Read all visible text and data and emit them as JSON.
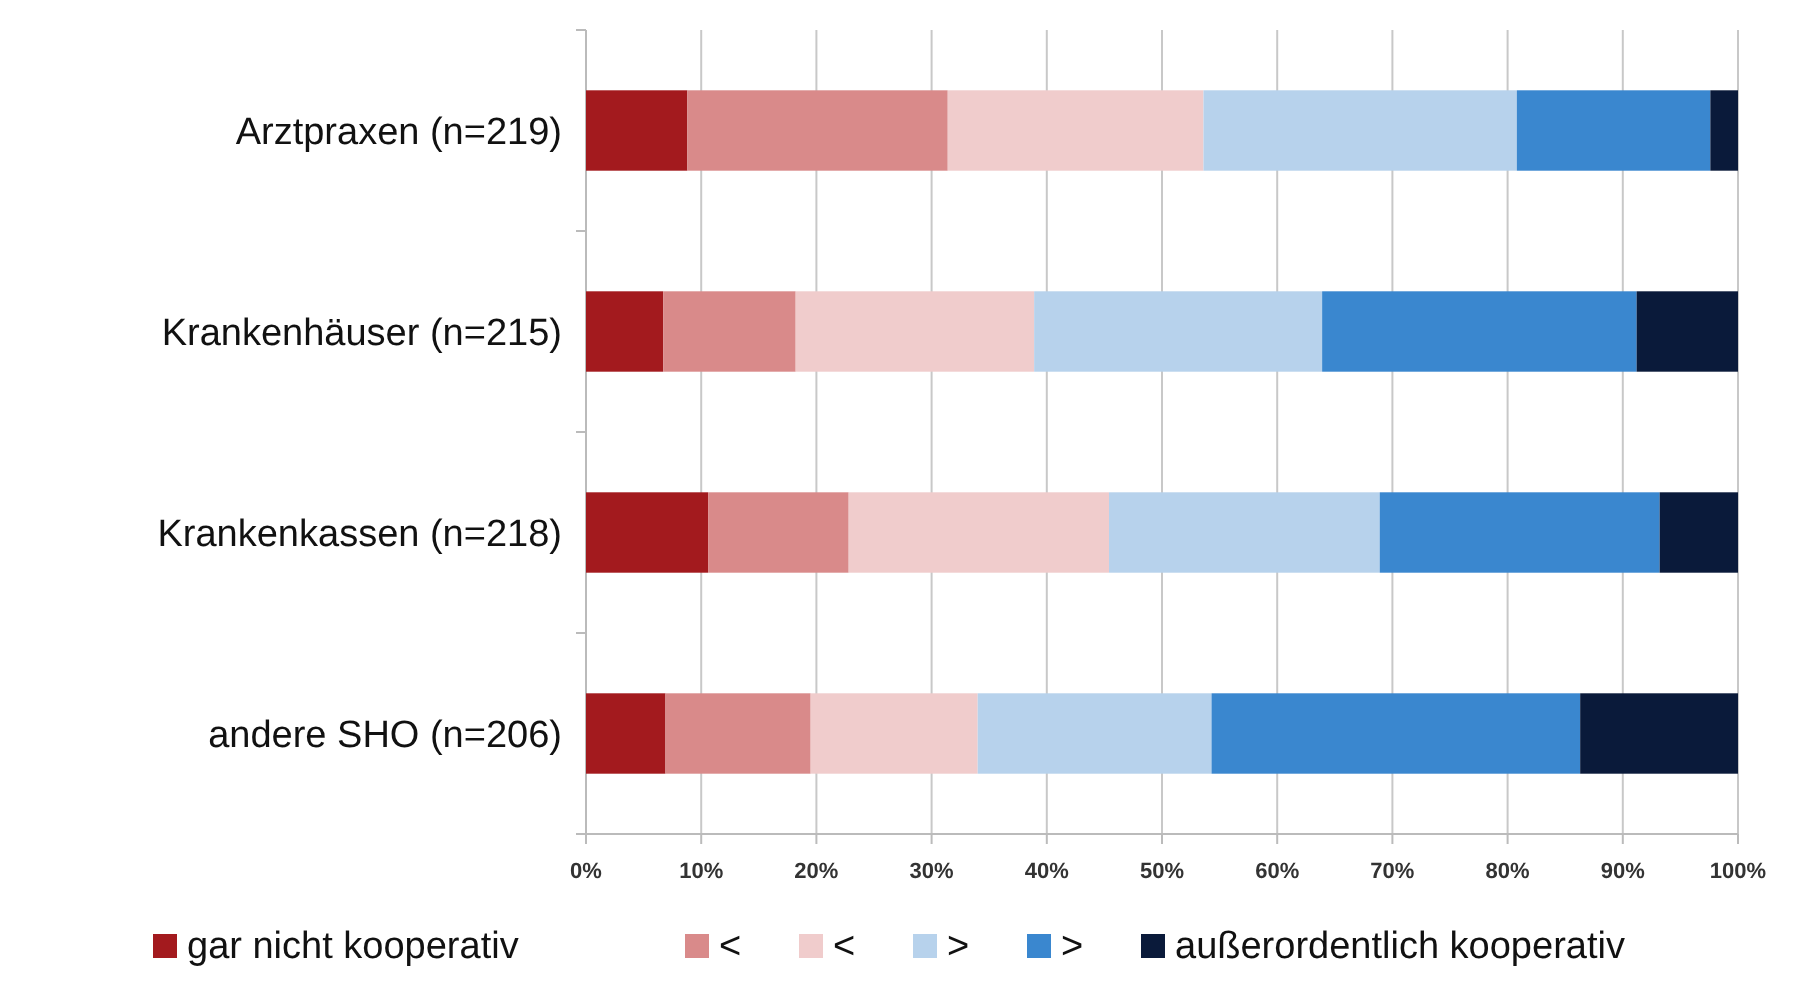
{
  "chart_data": {
    "type": "bar",
    "orientation": "horizontal",
    "stacked": true,
    "categories": [
      "Arztpraxen (n=219)",
      "Krankenhäuser (n=215)",
      "Krankenkassen (n=218)",
      "andere SHO (n=206)"
    ],
    "series": [
      {
        "name": "gar nicht kooperativ",
        "color": "#a31a1e",
        "values": [
          8.8,
          6.7,
          10.6,
          6.9
        ]
      },
      {
        "name": "<",
        "color": "#d98a8a",
        "values": [
          22.6,
          11.5,
          12.2,
          12.6
        ]
      },
      {
        "name": "<",
        "color": "#f0cccc",
        "values": [
          22.2,
          20.7,
          22.6,
          14.5
        ]
      },
      {
        "name": ">",
        "color": "#b7d2ec",
        "values": [
          27.2,
          25.0,
          23.5,
          20.3
        ]
      },
      {
        "name": ">",
        "color": "#3a87cf",
        "values": [
          16.8,
          27.3,
          24.3,
          32.0
        ]
      },
      {
        "name": "außerordentlich kooperativ",
        "color": "#0a1a3a",
        "values": [
          2.4,
          8.8,
          6.8,
          13.7
        ]
      }
    ],
    "xlim": [
      0,
      100
    ],
    "xticks": [
      {
        "value": 0,
        "label": "0%"
      },
      {
        "value": 10,
        "label": "10%"
      },
      {
        "value": 20,
        "label": "20%"
      },
      {
        "value": 30,
        "label": "30%"
      },
      {
        "value": 40,
        "label": "40%"
      },
      {
        "value": 50,
        "label": "50%"
      },
      {
        "value": 60,
        "label": "60%"
      },
      {
        "value": 70,
        "label": "70%"
      },
      {
        "value": 80,
        "label": "80%"
      },
      {
        "value": 90,
        "label": "90%"
      },
      {
        "value": 100,
        "label": "100%"
      }
    ],
    "grid": "x",
    "legend": "bottom"
  }
}
